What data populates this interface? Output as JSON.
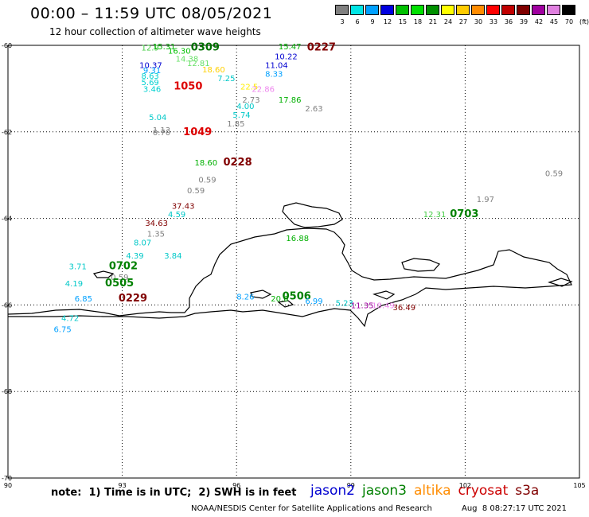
{
  "header": {
    "title": "00:00 – 11:59 UTC 08/05/2021",
    "subtitle": "12 hour collection of altimeter wave heights"
  },
  "colorbar": {
    "labels": [
      "3",
      "6",
      "9",
      "12",
      "15",
      "18",
      "21",
      "24",
      "27",
      "30",
      "33",
      "36",
      "39",
      "42",
      "45",
      "70"
    ],
    "unit": "(ft)",
    "colors": [
      "#808080",
      "#00e5e5",
      "#00a0ff",
      "#0000e0",
      "#00c000",
      "#00e000",
      "#009000",
      "#ffff00",
      "#ffcc00",
      "#ff8c00",
      "#ff0000",
      "#c00000",
      "#800000",
      "#a000a0",
      "#e080e0",
      "#000000"
    ]
  },
  "footer": {
    "note": "note:  1) Time is in UTC;  2) SWH is in feet",
    "credit": "NOAA/NESDIS Center for Satellite Applications and Research",
    "timestamp": "Aug  8 08:27:17 UTC 2021"
  },
  "satellites": [
    {
      "name": "jason2",
      "color": "#0000d0"
    },
    {
      "name": "jason3",
      "color": "#008000"
    },
    {
      "name": "altika",
      "color": "#ff8c00"
    },
    {
      "name": "cryosat",
      "color": "#cc0000"
    },
    {
      "name": "s3a",
      "color": "#800000"
    }
  ],
  "chart_data": {
    "type": "scatter",
    "title": "00:00 – 11:59 UTC 08/05/2021",
    "subtitle": "12 hour collection of altimeter wave heights",
    "xlim": [
      90,
      105
    ],
    "ylim": [
      -70,
      -60
    ],
    "x_ticks": [
      90,
      93,
      96,
      99,
      102,
      105
    ],
    "y_ticks": [
      -60,
      -62,
      -64,
      -66,
      -68,
      -70
    ],
    "grid": true,
    "unit": "ft",
    "labels": [
      {
        "text": "12.9",
        "lon": 93.5,
        "lat": -60.05,
        "color": "#44cc44"
      },
      {
        "text": "15.31",
        "lon": 93.8,
        "lat": -60.02,
        "color": "#00b000"
      },
      {
        "text": "16.30",
        "lon": 94.2,
        "lat": -60.12,
        "color": "#00c000"
      },
      {
        "text": "0309",
        "lon": 94.8,
        "lat": -60.05,
        "color": "#007000",
        "size": 14
      },
      {
        "text": "14.38",
        "lon": 94.4,
        "lat": -60.3,
        "color": "#66e066"
      },
      {
        "text": "12.81",
        "lon": 94.7,
        "lat": -60.4,
        "color": "#66e066"
      },
      {
        "text": "10.37",
        "lon": 93.45,
        "lat": -60.45,
        "color": "#0000d0"
      },
      {
        "text": "9.31",
        "lon": 93.55,
        "lat": -60.57,
        "color": "#00a0ff"
      },
      {
        "text": "8.63",
        "lon": 93.5,
        "lat": -60.7,
        "color": "#00d0d0"
      },
      {
        "text": "5.69",
        "lon": 93.5,
        "lat": -60.85,
        "color": "#00d0d0"
      },
      {
        "text": "3.46",
        "lon": 93.55,
        "lat": -61.0,
        "color": "#00d0d0"
      },
      {
        "text": "1050",
        "lon": 94.35,
        "lat": -60.95,
        "color": "#dd0000",
        "size": 14
      },
      {
        "text": "18.60",
        "lon": 95.1,
        "lat": -60.55,
        "color": "#ffd000"
      },
      {
        "text": "7.25",
        "lon": 95.5,
        "lat": -60.75,
        "color": "#00c8c8"
      },
      {
        "text": "22.5",
        "lon": 96.1,
        "lat": -60.95,
        "color": "#ffee00"
      },
      {
        "text": "22.86",
        "lon": 96.4,
        "lat": -61.0,
        "color": "#ee88ee"
      },
      {
        "text": "2.73",
        "lon": 96.15,
        "lat": -61.25,
        "color": "#808080"
      },
      {
        "text": "5.74",
        "lon": 95.9,
        "lat": -61.6,
        "color": "#00c8c8"
      },
      {
        "text": "4.00",
        "lon": 96.0,
        "lat": -61.4,
        "color": "#00c8c8"
      },
      {
        "text": "1.85",
        "lon": 95.75,
        "lat": -61.8,
        "color": "#808080"
      },
      {
        "text": "15.47",
        "lon": 97.1,
        "lat": -60.02,
        "color": "#00b000"
      },
      {
        "text": "0227",
        "lon": 97.85,
        "lat": -60.05,
        "color": "#800000",
        "size": 14
      },
      {
        "text": "10.22",
        "lon": 97.0,
        "lat": -60.25,
        "color": "#0000d0"
      },
      {
        "text": "11.04",
        "lon": 96.75,
        "lat": -60.45,
        "color": "#0000d0"
      },
      {
        "text": "8.33",
        "lon": 96.75,
        "lat": -60.65,
        "color": "#00a0ff"
      },
      {
        "text": "17.86",
        "lon": 97.1,
        "lat": -61.25,
        "color": "#00b000"
      },
      {
        "text": "2.63",
        "lon": 97.8,
        "lat": -61.45,
        "color": "#808080"
      },
      {
        "text": "5.04",
        "lon": 93.7,
        "lat": -61.65,
        "color": "#00c8c8"
      },
      {
        "text": "1.13",
        "lon": 93.8,
        "lat": -61.95,
        "color": "#808080"
      },
      {
        "text": "0.70",
        "lon": 93.8,
        "lat": -62.0,
        "color": "#808080"
      },
      {
        "text": "1049",
        "lon": 94.6,
        "lat": -62.0,
        "color": "#dd0000",
        "size": 14
      },
      {
        "text": "18.60",
        "lon": 94.9,
        "lat": -62.7,
        "color": "#00b000"
      },
      {
        "text": "0228",
        "lon": 95.65,
        "lat": -62.7,
        "color": "#800000",
        "size": 14
      },
      {
        "text": "0.59",
        "lon": 95.0,
        "lat": -63.1,
        "color": "#808080"
      },
      {
        "text": "0.59",
        "lon": 94.7,
        "lat": -63.35,
        "color": "#808080"
      },
      {
        "text": "0.59",
        "lon": 104.1,
        "lat": -62.95,
        "color": "#808080"
      },
      {
        "text": "1.97",
        "lon": 102.3,
        "lat": -63.55,
        "color": "#808080"
      },
      {
        "text": "12.31",
        "lon": 100.9,
        "lat": -63.9,
        "color": "#44cc44"
      },
      {
        "text": "0703",
        "lon": 101.6,
        "lat": -63.9,
        "color": "#008000",
        "size": 14
      },
      {
        "text": "37.43",
        "lon": 94.3,
        "lat": -63.7,
        "color": "#800000"
      },
      {
        "text": "4.59",
        "lon": 94.2,
        "lat": -63.9,
        "color": "#00c8c8"
      },
      {
        "text": "34.63",
        "lon": 93.6,
        "lat": -64.1,
        "color": "#800000"
      },
      {
        "text": "1.35",
        "lon": 93.65,
        "lat": -64.35,
        "color": "#808080"
      },
      {
        "text": "8.07",
        "lon": 93.3,
        "lat": -64.55,
        "color": "#00c8c8"
      },
      {
        "text": "4.39",
        "lon": 93.1,
        "lat": -64.85,
        "color": "#00c8c8"
      },
      {
        "text": "3.84",
        "lon": 94.1,
        "lat": -64.85,
        "color": "#00c8c8"
      },
      {
        "text": "16.88",
        "lon": 97.3,
        "lat": -64.45,
        "color": "#00b000"
      },
      {
        "text": "3.71",
        "lon": 91.6,
        "lat": -65.1,
        "color": "#00c8c8"
      },
      {
        "text": "0702",
        "lon": 92.65,
        "lat": -65.1,
        "color": "#008000",
        "size": 14
      },
      {
        "text": "0.59",
        "lon": 92.7,
        "lat": -65.35,
        "color": "#808080"
      },
      {
        "text": "4.19",
        "lon": 91.5,
        "lat": -65.5,
        "color": "#00c8c8"
      },
      {
        "text": "0505",
        "lon": 92.55,
        "lat": -65.5,
        "color": "#008000",
        "size": 14
      },
      {
        "text": "6.85",
        "lon": 91.75,
        "lat": -65.85,
        "color": "#00a0ff"
      },
      {
        "text": "0229",
        "lon": 92.9,
        "lat": -65.85,
        "color": "#800000",
        "size": 14
      },
      {
        "text": "8.26",
        "lon": 96.0,
        "lat": -65.8,
        "color": "#00a0ff"
      },
      {
        "text": "20.6",
        "lon": 96.9,
        "lat": -65.85,
        "color": "#00b000"
      },
      {
        "text": "0506",
        "lon": 97.2,
        "lat": -65.8,
        "color": "#008000",
        "size": 14
      },
      {
        "text": "6.99",
        "lon": 97.8,
        "lat": -65.9,
        "color": "#00a0ff"
      },
      {
        "text": "5.23",
        "lon": 98.6,
        "lat": -65.95,
        "color": "#00c8c8"
      },
      {
        "text": "11.35",
        "lon": 99.0,
        "lat": -66.0,
        "color": "#a000a0"
      },
      {
        "text": "18.49",
        "lon": 99.55,
        "lat": -66.0,
        "color": "#ee88ee"
      },
      {
        "text": "36.49",
        "lon": 100.1,
        "lat": -66.05,
        "color": "#800000"
      },
      {
        "text": "4.72",
        "lon": 91.4,
        "lat": -66.3,
        "color": "#00c8c8"
      },
      {
        "text": "6.75",
        "lon": 91.2,
        "lat": -66.55,
        "color": "#00a0ff"
      }
    ]
  }
}
